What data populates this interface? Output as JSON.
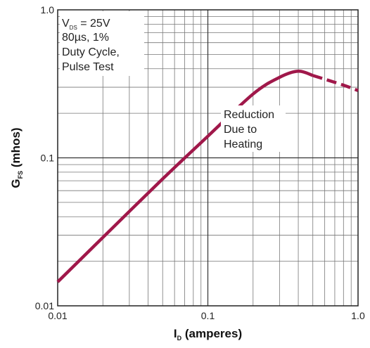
{
  "chart_data": {
    "type": "line",
    "title": "",
    "xscale": "log",
    "yscale": "log",
    "xlim": [
      0.01,
      1.0
    ],
    "ylim": [
      0.01,
      1.0
    ],
    "grid": true,
    "xlabel": {
      "main": "I",
      "sub": "D",
      "rest": " (amperes)"
    },
    "ylabel": {
      "main": "G",
      "sub": "FS",
      "rest": " (mhos)"
    },
    "x_ticks": [
      {
        "value": 0.01,
        "label": "0.01"
      },
      {
        "value": 0.1,
        "label": "0.1"
      },
      {
        "value": 1.0,
        "label": "1.0"
      }
    ],
    "y_ticks": [
      {
        "value": 0.01,
        "label": "0.01"
      },
      {
        "value": 0.1,
        "label": "0.1"
      },
      {
        "value": 1.0,
        "label": "1.0"
      }
    ],
    "series": [
      {
        "color": "#a0184a",
        "x": [
          0.01,
          0.02,
          0.05,
          0.1,
          0.2,
          0.3,
          0.4,
          0.5
        ],
        "y": [
          0.0145,
          0.029,
          0.072,
          0.14,
          0.27,
          0.35,
          0.385,
          0.36
        ]
      },
      {
        "color": "#a0184a",
        "style": "dashed",
        "x": [
          0.5,
          0.6,
          0.8,
          1.0
        ],
        "y": [
          0.36,
          0.34,
          0.31,
          0.285
        ]
      }
    ],
    "annotations": {
      "conditions": {
        "line1_prefix": "V",
        "line1_sub": "DS",
        "line1_suffix": " = 25V",
        "line2": "80µs, 1%",
        "line3": "Duty Cycle,",
        "line4": "Pulse Test"
      },
      "heating": [
        "Reduction",
        "Due to",
        "Heating"
      ]
    }
  }
}
